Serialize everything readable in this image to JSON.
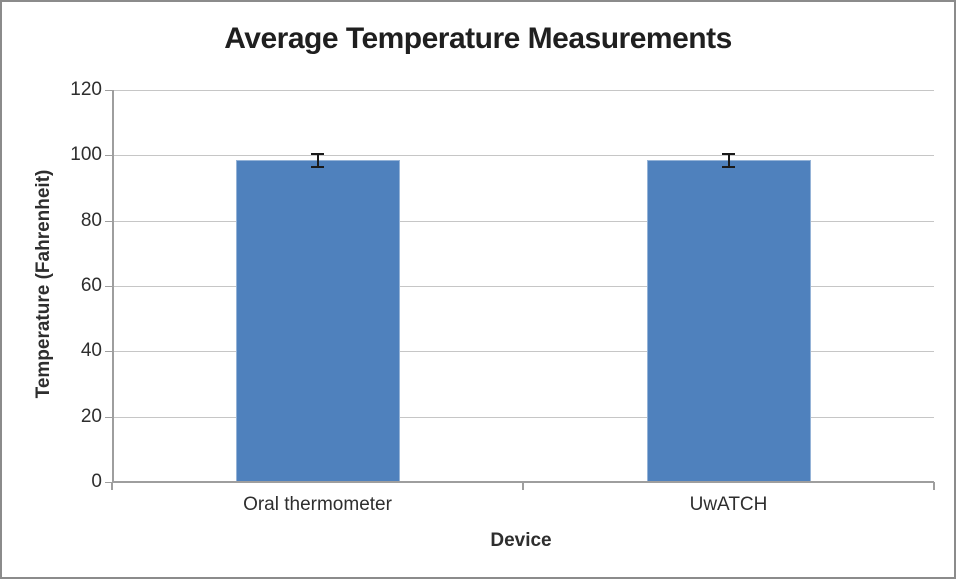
{
  "chart_data": {
    "type": "bar",
    "title": "Average Temperature Measurements",
    "xlabel": "Device",
    "ylabel": "Temperature (Fahrenheit)",
    "categories": [
      "Oral thermometer",
      "UwATCH"
    ],
    "values": [
      98.5,
      98.5
    ],
    "errors": [
      2,
      2
    ],
    "ylim": [
      0,
      120
    ],
    "ytick_step": 20,
    "grid": true,
    "legend": false,
    "colors": {
      "bar_fill": "#4F81BD",
      "bar_border": "#95B3D7",
      "error_bar": "#1A1A1A",
      "gridline": "#C6C6C6",
      "axis": "#9E9E9E",
      "text": "#2E2E2E",
      "frame_border": "#8B8B8B",
      "background": "#FFFFFF"
    }
  }
}
